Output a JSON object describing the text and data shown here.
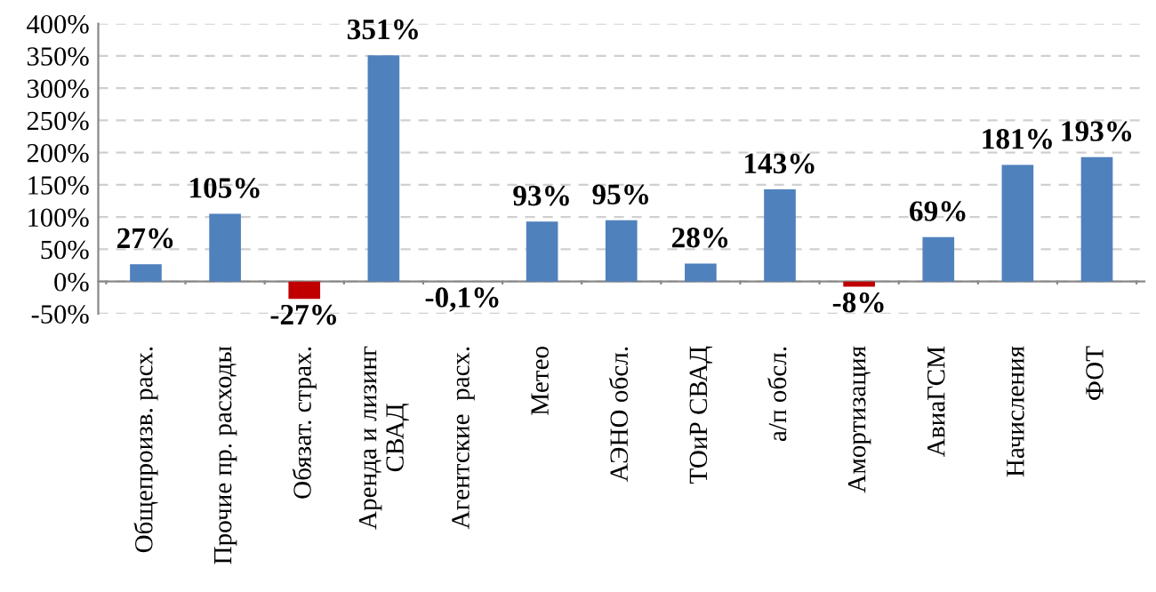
{
  "chart_data": {
    "type": "bar",
    "categories": [
      "Общепроизв. расх.",
      "Прочие пр. расходы",
      "Обязат. страх.",
      "Аренда и лизинг\nСВАД",
      "Агентские  расх.",
      "Метео",
      "АЭНО обсл.",
      "ТОиР СВАД",
      "а/п обсл.",
      "Амортизация",
      "АвиаГСМ",
      "Начисления",
      "ФОТ"
    ],
    "values": [
      27,
      105,
      -27,
      351,
      -0.1,
      93,
      95,
      28,
      143,
      -8,
      69,
      181,
      193
    ],
    "colors": [
      "#4f81bd",
      "#4f81bd",
      "#c00000",
      "#4f81bd",
      "#c00000",
      "#4f81bd",
      "#4f81bd",
      "#4f81bd",
      "#4f81bd",
      "#c00000",
      "#4f81bd",
      "#4f81bd",
      "#4f81bd"
    ],
    "value_labels": [
      "27%",
      "105%",
      "-27%",
      "351%",
      "-0,1%",
      "93%",
      "95%",
      "28%",
      "143%",
      "-8%",
      "69%",
      "181%",
      "193%"
    ],
    "ylim": [
      -50,
      400
    ],
    "yticks": [
      {
        "value": -50,
        "label": "-50%"
      },
      {
        "value": 0,
        "label": "0%"
      },
      {
        "value": 50,
        "label": "50%"
      },
      {
        "value": 100,
        "label": "100%"
      },
      {
        "value": 150,
        "label": "150%"
      },
      {
        "value": 200,
        "label": "200%"
      },
      {
        "value": 250,
        "label": "250%"
      },
      {
        "value": 300,
        "label": "300%"
      },
      {
        "value": 350,
        "label": "350%"
      },
      {
        "value": 400,
        "label": "400%"
      }
    ],
    "grid": "y"
  }
}
